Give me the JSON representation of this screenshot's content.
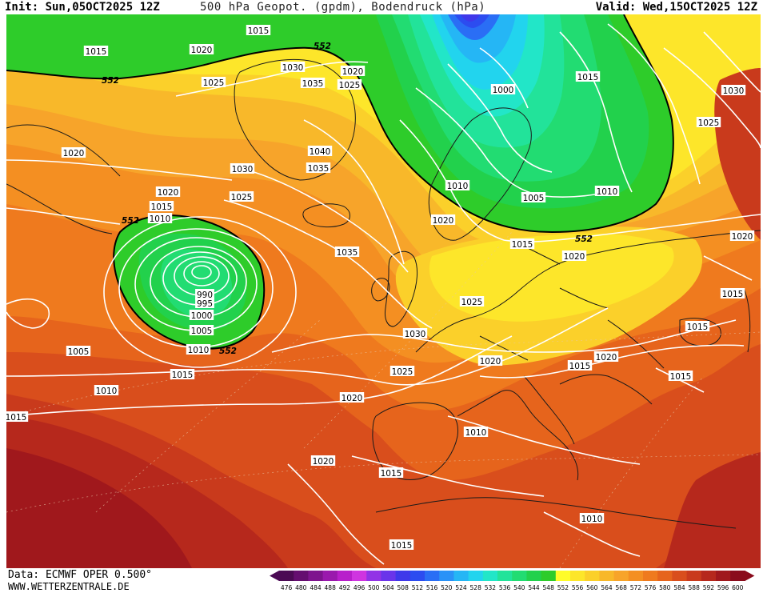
{
  "header": {
    "init": "Init: Sun,05OCT2025 12Z",
    "title": "500 hPa Geopot. (gpdm), Bodendruck (hPa)",
    "valid": "Valid: Wed,15OCT2025 12Z"
  },
  "footer": {
    "source": "Data: ECMWF OPER 0.500°",
    "site": "WWW.WETTERZENTRALE.DE"
  },
  "colors": {
    "land_line": "#1a1a1a",
    "isobar": "#ffffff",
    "contour_552": "#000000"
  },
  "legend": {
    "ticks": [
      "476",
      "480",
      "484",
      "488",
      "492",
      "496",
      "500",
      "504",
      "508",
      "512",
      "516",
      "520",
      "524",
      "528",
      "532",
      "536",
      "540",
      "544",
      "548",
      "552",
      "556",
      "560",
      "564",
      "568",
      "572",
      "576",
      "580",
      "584",
      "588",
      "592",
      "596",
      "600"
    ],
    "colors": [
      "#4b0a54",
      "#650e70",
      "#7e148e",
      "#9a19ad",
      "#b81fcb",
      "#cf35e0",
      "#9233e6",
      "#6a34ea",
      "#3f38ea",
      "#2c4cf0",
      "#2a6ef5",
      "#2a92f7",
      "#25b6f5",
      "#22d4ee",
      "#22e6c8",
      "#22e39a",
      "#22dc72",
      "#22d14c",
      "#2ecc2a",
      "#fffc2a",
      "#fde62a",
      "#fbd02a",
      "#f8b82a",
      "#f7a42a",
      "#f48f22",
      "#ef7a1e",
      "#e6641c",
      "#d94e1c",
      "#c93a1c",
      "#b6281c",
      "#a0181c",
      "#8a0c1c"
    ]
  },
  "isobar_labels": [
    {
      "text": "1015"
    },
    {
      "text": "1020"
    },
    {
      "text": "552"
    },
    {
      "text": "1015"
    },
    {
      "text": "552"
    },
    {
      "text": "1025"
    },
    {
      "text": "1030"
    },
    {
      "text": "1035"
    },
    {
      "text": "1025"
    },
    {
      "text": "1020"
    },
    {
      "text": "1000"
    },
    {
      "text": "1015"
    },
    {
      "text": "1030"
    },
    {
      "text": "1025"
    },
    {
      "text": "1020"
    },
    {
      "text": "1040"
    },
    {
      "text": "1035"
    },
    {
      "text": "1030"
    },
    {
      "text": "1020"
    },
    {
      "text": "1025"
    },
    {
      "text": "1015"
    },
    {
      "text": "552"
    },
    {
      "text": "1010"
    },
    {
      "text": "1010"
    },
    {
      "text": "1005"
    },
    {
      "text": "1010"
    },
    {
      "text": "1020"
    },
    {
      "text": "1015"
    },
    {
      "text": "552"
    },
    {
      "text": "1020"
    },
    {
      "text": "1035"
    },
    {
      "text": "990"
    },
    {
      "text": "995"
    },
    {
      "text": "1000"
    },
    {
      "text": "1005"
    },
    {
      "text": "1010"
    },
    {
      "text": "552"
    },
    {
      "text": "1005"
    },
    {
      "text": "1025"
    },
    {
      "text": "1030"
    },
    {
      "text": "1020"
    },
    {
      "text": "1025"
    },
    {
      "text": "1015"
    },
    {
      "text": "1020"
    },
    {
      "text": "1015"
    },
    {
      "text": "1015"
    },
    {
      "text": "1015"
    },
    {
      "text": "1010"
    },
    {
      "text": "1020"
    },
    {
      "text": "1015"
    },
    {
      "text": "1020"
    },
    {
      "text": "1015"
    },
    {
      "text": "1010"
    },
    {
      "text": "1020"
    },
    {
      "text": "1010"
    },
    {
      "text": "1015"
    },
    {
      "text": "1015"
    }
  ]
}
